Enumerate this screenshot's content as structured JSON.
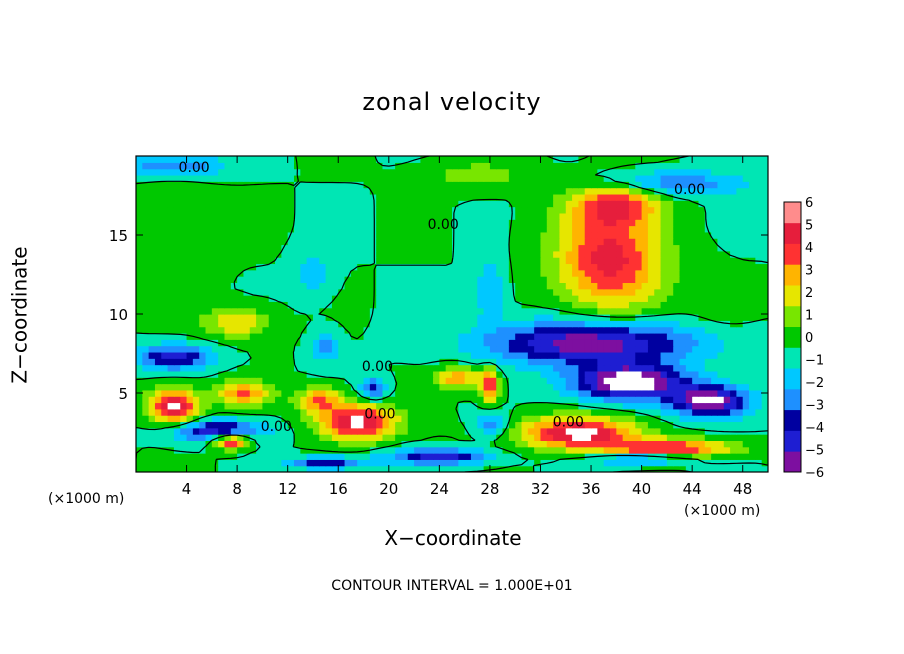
{
  "title": "zonal velocity",
  "footer": "CONTOUR INTERVAL = 1.000E+01",
  "colors": {
    "scale": [
      "#7d0fa0",
      "#1e1ed2",
      "#0000a0",
      "#1e90ff",
      "#00c8ff",
      "#00e6b4",
      "#00c800",
      "#78e600",
      "#e6e600",
      "#ffb400",
      "#ff3232",
      "#e61e3c",
      "#ff8c8c"
    ]
  },
  "chart_data": {
    "type": "heatmap",
    "title": "zonal velocity",
    "xlabel": "X−coordinate",
    "ylabel": "Z−coordinate",
    "x_unit": "(×1000 m)",
    "xlim": [
      0,
      50
    ],
    "ylim": [
      0,
      20
    ],
    "x_ticks": [
      "4",
      "8",
      "12",
      "16",
      "20",
      "24",
      "28",
      "32",
      "36",
      "40",
      "44",
      "48"
    ],
    "x_tick_values": [
      4,
      8,
      12,
      16,
      20,
      24,
      28,
      32,
      36,
      40,
      44,
      48
    ],
    "y_ticks": [
      "5",
      "10",
      "15"
    ],
    "y_tick_values": [
      5,
      10,
      15
    ],
    "colorbar": {
      "min": -6,
      "max": 6,
      "tick_labels": [
        "6",
        "5",
        "4",
        "3",
        "2",
        "1",
        "0",
        "−1",
        "−2",
        "−3",
        "−4",
        "−5",
        "−6"
      ],
      "tick_values": [
        6,
        5,
        4,
        3,
        2,
        1,
        0,
        -1,
        -2,
        -3,
        -4,
        -5,
        -6
      ]
    },
    "contour_label": "0.00",
    "contour_label_positions": [
      [
        4.6,
        19.3
      ],
      [
        24.3,
        15.7
      ],
      [
        43.8,
        17.9
      ],
      [
        19.1,
        6.7
      ],
      [
        19.3,
        3.7
      ],
      [
        11.1,
        2.9
      ],
      [
        34.2,
        3.2
      ]
    ],
    "features": [
      {
        "kind": "positive-max",
        "x": 37.5,
        "y": 13.5,
        "value": 5.5,
        "sx": 4.2,
        "sy": 3.3
      },
      {
        "kind": "positive",
        "x": 38.0,
        "y": 17.0,
        "value": 4.0,
        "sx": 3.5,
        "sy": 1.3
      },
      {
        "kind": "negative",
        "x": 42.0,
        "y": 18.3,
        "value": -3.0,
        "sx": 6.0,
        "sy": 0.8
      },
      {
        "kind": "negative",
        "x": 3.0,
        "y": 19.4,
        "value": -3.0,
        "sx": 4.0,
        "sy": 0.7
      },
      {
        "kind": "positive",
        "x": 8.0,
        "y": 9.5,
        "value": 3.0,
        "sx": 2.5,
        "sy": 1.0
      },
      {
        "kind": "positive",
        "x": 27.0,
        "y": 18.8,
        "value": 1.5,
        "sx": 4.0,
        "sy": 0.9
      },
      {
        "kind": "positive",
        "x": 3.0,
        "y": 14.5,
        "value": 1.0,
        "sx": 3.0,
        "sy": 4.0
      },
      {
        "kind": "negative",
        "x": 28.0,
        "y": 11.5,
        "value": -2.0,
        "sx": 1.2,
        "sy": 2.0
      },
      {
        "kind": "negative",
        "x": 14.0,
        "y": 12.5,
        "value": -1.5,
        "sx": 1.5,
        "sy": 1.5
      },
      {
        "kind": "negative",
        "x": 36.0,
        "y": 8.2,
        "value": -6.0,
        "sx": 8.0,
        "sy": 1.4
      },
      {
        "kind": "negative-min",
        "x": 39.0,
        "y": 5.7,
        "value": -7.0,
        "sx": 4.5,
        "sy": 1.1
      },
      {
        "kind": "negative",
        "x": 45.5,
        "y": 4.5,
        "value": -6.5,
        "sx": 3.0,
        "sy": 1.0
      },
      {
        "kind": "negative",
        "x": 3.0,
        "y": 7.3,
        "value": -4.5,
        "sx": 3.0,
        "sy": 0.8
      },
      {
        "kind": "positive",
        "x": 3.0,
        "y": 4.2,
        "value": 6.5,
        "sx": 2.0,
        "sy": 1.1
      },
      {
        "kind": "positive",
        "x": 8.5,
        "y": 5.0,
        "value": 4.0,
        "sx": 2.2,
        "sy": 0.8
      },
      {
        "kind": "negative",
        "x": 6.5,
        "y": 2.6,
        "value": -5.0,
        "sx": 3.5,
        "sy": 0.7
      },
      {
        "kind": "positive",
        "x": 7.5,
        "y": 2.0,
        "value": 6.5,
        "sx": 1.5,
        "sy": 0.5
      },
      {
        "kind": "positive",
        "x": 17.5,
        "y": 3.2,
        "value": 6.5,
        "sx": 3.0,
        "sy": 1.1
      },
      {
        "kind": "positive",
        "x": 14.5,
        "y": 4.6,
        "value": 4.0,
        "sx": 1.8,
        "sy": 0.8
      },
      {
        "kind": "negative",
        "x": 18.8,
        "y": 5.3,
        "value": -3.5,
        "sx": 1.0,
        "sy": 0.7
      },
      {
        "kind": "negative",
        "x": 15.0,
        "y": 8.0,
        "value": -2.5,
        "sx": 1.0,
        "sy": 1.0
      },
      {
        "kind": "positive",
        "x": 25.5,
        "y": 6.0,
        "value": 4.0,
        "sx": 1.7,
        "sy": 0.7
      },
      {
        "kind": "positive",
        "x": 28.0,
        "y": 5.5,
        "value": 5.0,
        "sx": 0.8,
        "sy": 1.1
      },
      {
        "kind": "negative",
        "x": 28.2,
        "y": 3.0,
        "value": -3.0,
        "sx": 1.2,
        "sy": 0.8
      },
      {
        "kind": "positive",
        "x": 35.0,
        "y": 2.5,
        "value": 6.5,
        "sx": 4.5,
        "sy": 1.0
      },
      {
        "kind": "positive",
        "x": 42.0,
        "y": 1.5,
        "value": 5.5,
        "sx": 5.0,
        "sy": 0.6
      },
      {
        "kind": "negative",
        "x": 24.0,
        "y": 1.0,
        "value": -4.5,
        "sx": 4.0,
        "sy": 0.5
      },
      {
        "kind": "negative",
        "x": 40.0,
        "y": 0.9,
        "value": -4.0,
        "sx": 4.0,
        "sy": 0.4
      },
      {
        "kind": "negative",
        "x": 15.0,
        "y": 0.6,
        "value": -4.0,
        "sx": 3.0,
        "sy": 0.4
      },
      {
        "kind": "positive",
        "x": 46.5,
        "y": 10.5,
        "value": 1.0,
        "sx": 2.5,
        "sy": 1.5
      },
      {
        "kind": "negative",
        "x": 47.5,
        "y": 16.0,
        "value": -1.0,
        "sx": 2.0,
        "sy": 1.5
      }
    ]
  }
}
